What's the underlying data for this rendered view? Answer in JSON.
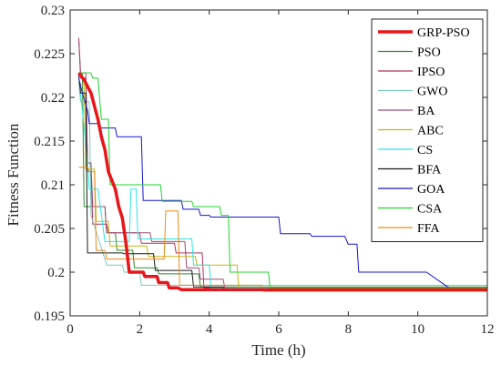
{
  "chart_data": {
    "type": "line",
    "title": "",
    "xlabel": "Time (h)",
    "ylabel": "Fitness Function",
    "xlim": [
      0,
      12
    ],
    "ylim": [
      0.195,
      0.23
    ],
    "xticks": [
      0,
      2,
      4,
      6,
      8,
      10,
      12
    ],
    "xtick_labels": [
      "0",
      "2",
      "4",
      "6",
      "8",
      "10",
      "12"
    ],
    "yticks": [
      0.195,
      0.2,
      0.205,
      0.21,
      0.215,
      0.22,
      0.225,
      0.23
    ],
    "ytick_labels": [
      "0.195",
      "0.2",
      "0.205",
      "0.21",
      "0.215",
      "0.22",
      "0.225",
      "0.23"
    ],
    "grid": false,
    "legend_position": "top-right",
    "series": [
      {
        "name": "GRP-PSO",
        "color": "#e8161a",
        "line_width": 3.5,
        "x": [
          0.25,
          0.4,
          0.6,
          0.8,
          0.9,
          1.0,
          1.1,
          1.2,
          1.3,
          1.4,
          1.5,
          1.6,
          1.7,
          2.1,
          2.15,
          2.5,
          2.55,
          2.8,
          2.85,
          3.1,
          3.2,
          12
        ],
        "y": [
          0.2228,
          0.222,
          0.2205,
          0.2175,
          0.2155,
          0.214,
          0.2115,
          0.2105,
          0.2095,
          0.2075,
          0.2062,
          0.2035,
          0.2,
          0.2,
          0.1995,
          0.1995,
          0.1988,
          0.1988,
          0.1982,
          0.1982,
          0.198,
          0.198
        ]
      },
      {
        "name": "PSO",
        "color": "#2e8b2e",
        "line_width": 1,
        "x": [
          0.25,
          0.35,
          0.4,
          1.0,
          1.05,
          1.3,
          1.35,
          1.8,
          1.85,
          2.5,
          2.55,
          3.7,
          3.75,
          12
        ],
        "y": [
          0.2228,
          0.2228,
          0.2075,
          0.2075,
          0.2045,
          0.2045,
          0.2025,
          0.2025,
          0.2005,
          0.2005,
          0.1998,
          0.1998,
          0.1983,
          0.1983
        ]
      },
      {
        "name": "IPSO",
        "color": "#b0345a",
        "line_width": 1,
        "x": [
          0.25,
          0.3,
          0.45,
          0.5,
          0.6,
          0.65,
          1.05,
          1.1,
          2.0,
          2.05,
          3.0,
          3.05,
          3.8,
          3.85,
          12
        ],
        "y": [
          0.2268,
          0.2222,
          0.2222,
          0.2115,
          0.2115,
          0.2055,
          0.2055,
          0.2045,
          0.2045,
          0.2033,
          0.2033,
          0.2022,
          0.2022,
          0.1982,
          0.1982
        ]
      },
      {
        "name": "GWO",
        "color": "#7fc9c0",
        "line_width": 1,
        "x": [
          0.25,
          0.3,
          0.55,
          0.6,
          0.8,
          1.0,
          1.05,
          1.5,
          1.55,
          2.0,
          2.05,
          12
        ],
        "y": [
          0.2218,
          0.2195,
          0.2195,
          0.2065,
          0.204,
          0.2015,
          0.2008,
          0.2008,
          0.2,
          0.2,
          0.1985,
          0.1985
        ]
      },
      {
        "name": "BA",
        "color": "#9e4a73",
        "line_width": 1,
        "x": [
          0.25,
          0.3,
          0.45,
          0.5,
          0.6,
          0.65,
          1.0,
          1.05,
          2.3,
          2.35,
          3.3,
          3.35,
          3.7,
          3.75,
          4.4,
          4.45,
          12
        ],
        "y": [
          0.2265,
          0.2228,
          0.2228,
          0.2125,
          0.2125,
          0.2075,
          0.2075,
          0.2045,
          0.2045,
          0.2035,
          0.2035,
          0.2005,
          0.2005,
          0.1992,
          0.1992,
          0.1982,
          0.1982
        ]
      },
      {
        "name": "ABC",
        "color": "#c8b31e",
        "line_width": 1,
        "x": [
          0.25,
          0.4,
          0.45,
          0.7,
          0.75,
          1.1,
          1.15,
          2.2,
          2.25,
          3.6,
          3.65,
          4.8,
          4.85,
          12
        ],
        "y": [
          0.2215,
          0.2215,
          0.2118,
          0.2118,
          0.2058,
          0.2058,
          0.203,
          0.203,
          0.2018,
          0.2018,
          0.2008,
          0.2008,
          0.1982,
          0.1982
        ]
      },
      {
        "name": "CS",
        "color": "#2ee6e6",
        "line_width": 1,
        "x": [
          0.25,
          0.3,
          0.5,
          0.55,
          0.8,
          1.0,
          1.05,
          1.7,
          1.75,
          1.9,
          1.95,
          2.9,
          2.95,
          3.5,
          3.55,
          4.0,
          4.05,
          12
        ],
        "y": [
          0.2205,
          0.2205,
          0.2125,
          0.2095,
          0.2095,
          0.2035,
          0.2035,
          0.2035,
          0.2095,
          0.2095,
          0.2038,
          0.2038,
          0.2038,
          0.2038,
          0.2008,
          0.2008,
          0.1982,
          0.1982
        ]
      },
      {
        "name": "BFA",
        "color": "#1a1a1a",
        "line_width": 1,
        "x": [
          0.25,
          0.3,
          0.45,
          0.5,
          1.5,
          1.55,
          2.4,
          2.45,
          3.5,
          3.55,
          4.4,
          4.45,
          12
        ],
        "y": [
          0.2225,
          0.2205,
          0.2205,
          0.2022,
          0.2022,
          0.2021,
          0.2021,
          0.2002,
          0.2002,
          0.1983,
          0.1983,
          0.1981,
          0.1981
        ]
      },
      {
        "name": "GOA",
        "color": "#1515d0",
        "line_width": 1,
        "x": [
          0.25,
          0.35,
          0.5,
          0.55,
          0.8,
          0.85,
          1.3,
          1.35,
          2.05,
          2.1,
          3.2,
          3.25,
          3.7,
          3.75,
          4.0,
          4.05,
          6.0,
          6.05,
          6.9,
          6.95,
          7.9,
          8.0,
          8.25,
          8.3,
          10.2,
          10.25,
          10.9,
          10.95,
          12
        ],
        "y": [
          0.2222,
          0.2205,
          0.2185,
          0.217,
          0.217,
          0.2165,
          0.2165,
          0.2155,
          0.2155,
          0.2082,
          0.2082,
          0.2072,
          0.2072,
          0.2065,
          0.2065,
          0.2063,
          0.2063,
          0.2044,
          0.2044,
          0.2041,
          0.2041,
          0.2032,
          0.2032,
          0.2,
          0.2,
          0.2,
          0.1982,
          0.198,
          0.198
        ]
      },
      {
        "name": "CSA",
        "color": "#22d42b",
        "line_width": 1,
        "x": [
          0.25,
          0.6,
          0.65,
          0.8,
          0.9,
          1.1,
          1.15,
          2.6,
          2.65,
          3.5,
          3.55,
          4.3,
          4.35,
          4.55,
          4.6,
          5.7,
          5.75,
          12
        ],
        "y": [
          0.2228,
          0.2228,
          0.2222,
          0.2222,
          0.2175,
          0.2175,
          0.21,
          0.21,
          0.2081,
          0.2081,
          0.2075,
          0.2075,
          0.2065,
          0.2065,
          0.2,
          0.2,
          0.1982,
          0.1982
        ]
      },
      {
        "name": "FFA",
        "color": "#ee8a1a",
        "line_width": 1,
        "x": [
          0.25,
          0.5,
          0.55,
          0.7,
          0.75,
          1.0,
          1.05,
          2.7,
          2.75,
          3.1,
          3.15,
          5.5,
          5.55,
          12
        ],
        "y": [
          0.212,
          0.212,
          0.2115,
          0.2115,
          0.2025,
          0.2025,
          0.2015,
          0.2015,
          0.207,
          0.207,
          0.1985,
          0.1985,
          0.1978,
          0.1978
        ]
      }
    ]
  }
}
